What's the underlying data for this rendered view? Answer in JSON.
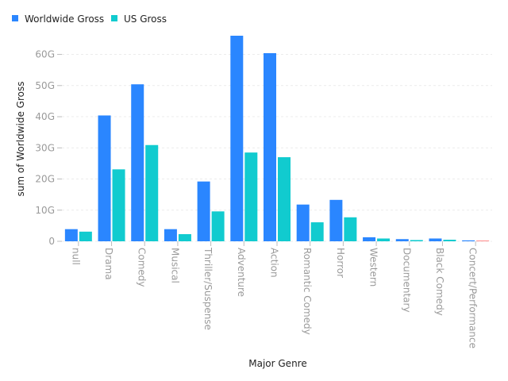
{
  "chart_data": {
    "type": "bar",
    "categories": [
      "null",
      "Drama",
      "Comedy",
      "Musical",
      "Thriller/Suspense",
      "Adventure",
      "Action",
      "Romantic Comedy",
      "Horror",
      "Western",
      "Documentary",
      "Black Comedy",
      "Concert/Performance"
    ],
    "series": [
      {
        "name": "Worldwide Gross",
        "color": "#2a86ff",
        "values": [
          3.9,
          40.4,
          50.4,
          3.9,
          19.2,
          66.0,
          60.4,
          11.8,
          13.3,
          1.3,
          0.7,
          0.9,
          0.3
        ]
      },
      {
        "name": "US Gross",
        "color": "#11cbcf",
        "values": [
          3.1,
          23.1,
          30.9,
          2.3,
          9.6,
          28.5,
          27.0,
          6.1,
          7.7,
          0.9,
          0.4,
          0.5,
          0.2
        ]
      }
    ],
    "xlabel": "Major Genre",
    "ylabel": "sum of Worldwide Gross",
    "ylim": [
      0,
      66
    ],
    "yticks": [
      0,
      10,
      20,
      30,
      40,
      50,
      60
    ],
    "ytick_labels": [
      "0",
      "10G",
      "20G",
      "30G",
      "40G",
      "50G",
      "60G"
    ],
    "grid": true,
    "legend_position": "top-left",
    "highlighted_point_color": "#ff6b6b"
  }
}
